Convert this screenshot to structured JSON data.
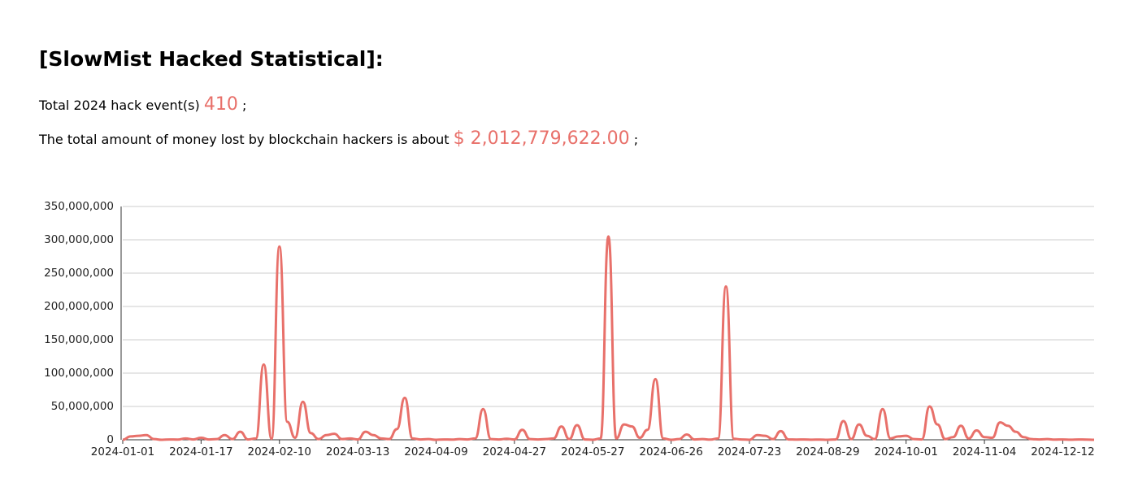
{
  "header": {
    "title": "[SlowMist Hacked Statistical]:"
  },
  "stats": {
    "events_label": "Total 2024 hack event(s)",
    "events": 410,
    "events_end": ";",
    "loss_label": "The total amount of money lost by blockchain hackers is about",
    "loss": "$ 2,012,779,622.00",
    "loss_end": ";"
  },
  "chart_data": {
    "type": "line",
    "categories": [
      "2024-01-01",
      null,
      null,
      null,
      null,
      null,
      null,
      null,
      null,
      null,
      "2024-01-17",
      null,
      null,
      null,
      null,
      null,
      null,
      null,
      null,
      null,
      "2024-02-10",
      null,
      null,
      null,
      null,
      null,
      null,
      null,
      null,
      null,
      "2024-03-13",
      null,
      null,
      null,
      null,
      null,
      null,
      null,
      null,
      null,
      "2024-04-09",
      null,
      null,
      null,
      null,
      null,
      null,
      null,
      null,
      null,
      "2024-04-27",
      null,
      null,
      null,
      null,
      null,
      null,
      null,
      null,
      null,
      "2024-05-27",
      null,
      null,
      null,
      null,
      null,
      null,
      null,
      null,
      null,
      "2024-06-26",
      null,
      null,
      null,
      null,
      null,
      null,
      null,
      null,
      null,
      "2024-07-23",
      null,
      null,
      null,
      null,
      null,
      null,
      null,
      null,
      null,
      "2024-08-29",
      null,
      null,
      null,
      null,
      null,
      null,
      null,
      null,
      null,
      "2024-10-01",
      null,
      null,
      null,
      null,
      null,
      null,
      null,
      null,
      null,
      "2024-11-04",
      null,
      null,
      null,
      null,
      null,
      null,
      null,
      null,
      null,
      "2024-12-12",
      null,
      null,
      null,
      null
    ],
    "values": [
      0,
      5000000,
      6000000,
      7000000,
      1000000,
      0,
      500000,
      300000,
      2000000,
      500000,
      3000000,
      500000,
      1000000,
      7000000,
      1000000,
      12000000,
      500000,
      2000000,
      113000000,
      1500000,
      290000000,
      27000000,
      3000000,
      57000000,
      10000000,
      1000000,
      7000000,
      9000000,
      1000000,
      2000000,
      500000,
      12000000,
      7000000,
      2000000,
      1000000,
      16000000,
      63000000,
      2000000,
      500000,
      1000000,
      0,
      500000,
      300000,
      1000000,
      500000,
      2000000,
      46000000,
      1000000,
      500000,
      1500000,
      500000,
      15000000,
      1000000,
      500000,
      1000000,
      2000000,
      20000000,
      1000000,
      22000000,
      500000,
      0,
      2000000,
      305000000,
      2000000,
      23000000,
      20000000,
      3000000,
      15000000,
      91000000,
      2000000,
      0,
      1000000,
      8000000,
      500000,
      1000000,
      300000,
      2000000,
      230000000,
      1500000,
      500000,
      0,
      7000000,
      6000000,
      1000000,
      13000000,
      500000,
      300000,
      500000,
      200000,
      300000,
      0,
      500000,
      28000000,
      1000000,
      23000000,
      6000000,
      1000000,
      46000000,
      2000000,
      5000000,
      6000000,
      1000000,
      500000,
      50000000,
      23000000,
      1000000,
      4000000,
      21000000,
      2000000,
      14000000,
      4000000,
      3000000,
      26000000,
      21000000,
      12000000,
      4000000,
      1000000,
      500000,
      1000000,
      300000,
      500000,
      200000,
      500000,
      300000,
      0
    ],
    "color": "#e8706a",
    "ylim": [
      0,
      350000000
    ],
    "yticks": [
      {
        "value": 0,
        "label": "0"
      },
      {
        "value": 50000000,
        "label": "50,000,000"
      },
      {
        "value": 100000000,
        "label": "100,000,000"
      },
      {
        "value": 150000000,
        "label": "150,000,000"
      },
      {
        "value": 200000000,
        "label": "200,000,000"
      },
      {
        "value": 250000000,
        "label": "250,000,000"
      },
      {
        "value": 300000000,
        "label": "300,000,000"
      },
      {
        "value": 350000000,
        "label": "350,000,000"
      }
    ],
    "grid": true
  }
}
